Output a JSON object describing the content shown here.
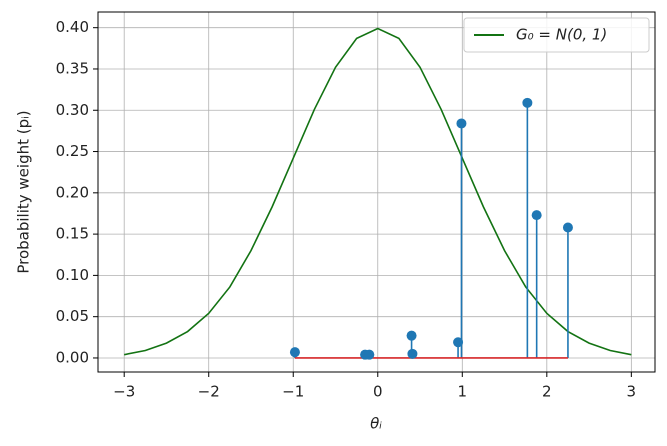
{
  "chart_data": {
    "type": "stem",
    "xlabel": "θᵢ",
    "ylabel": "Probability weight (pᵢ)",
    "xlim": [
      -3.31,
      3.28
    ],
    "ylim": [
      -0.017,
      0.419
    ],
    "xticks": [
      {
        "value": -3,
        "label": "−3"
      },
      {
        "value": -2,
        "label": "−2"
      },
      {
        "value": -1,
        "label": "−1"
      },
      0,
      1,
      2,
      3
    ],
    "yticks": [
      {
        "value": 0,
        "label": "0.00"
      },
      {
        "value": 0.05,
        "label": "0.05"
      },
      {
        "value": 0.1,
        "label": "0.10"
      },
      {
        "value": 0.15,
        "label": "0.15"
      },
      {
        "value": 0.2,
        "label": "0.20"
      },
      {
        "value": 0.25,
        "label": "0.25"
      },
      {
        "value": 0.3,
        "label": "0.30"
      },
      {
        "value": 0.35,
        "label": "0.35"
      },
      {
        "value": 0.4,
        "label": "0.40"
      }
    ],
    "grid": true,
    "legend": "upper right",
    "series": [
      {
        "name": "G₀ = N(0, 1)",
        "type": "line",
        "color": "#137313",
        "x": [
          -3,
          -2.75,
          -2.5,
          -2.25,
          -2,
          -1.75,
          -1.5,
          -1.25,
          -1,
          -0.75,
          -0.5,
          -0.25,
          0,
          0.25,
          0.5,
          0.75,
          1,
          1.25,
          1.5,
          1.75,
          2,
          2.25,
          2.5,
          2.75,
          3
        ],
        "values": [
          0.004,
          0.009,
          0.018,
          0.032,
          0.054,
          0.086,
          0.13,
          0.183,
          0.242,
          0.301,
          0.352,
          0.387,
          0.399,
          0.387,
          0.352,
          0.301,
          0.242,
          0.183,
          0.13,
          0.086,
          0.054,
          0.032,
          0.018,
          0.009,
          0.004
        ]
      },
      {
        "type": "stem",
        "color": "#1f77b4",
        "baseline_color": "#d62728",
        "x": [
          -0.98,
          -0.15,
          -0.1,
          0.4,
          0.41,
          0.95,
          0.99,
          1.77,
          1.88,
          2.25
        ],
        "values": [
          0.007,
          0.004,
          0.004,
          0.027,
          0.005,
          0.019,
          0.284,
          0.309,
          0.173,
          0.158
        ]
      }
    ]
  }
}
